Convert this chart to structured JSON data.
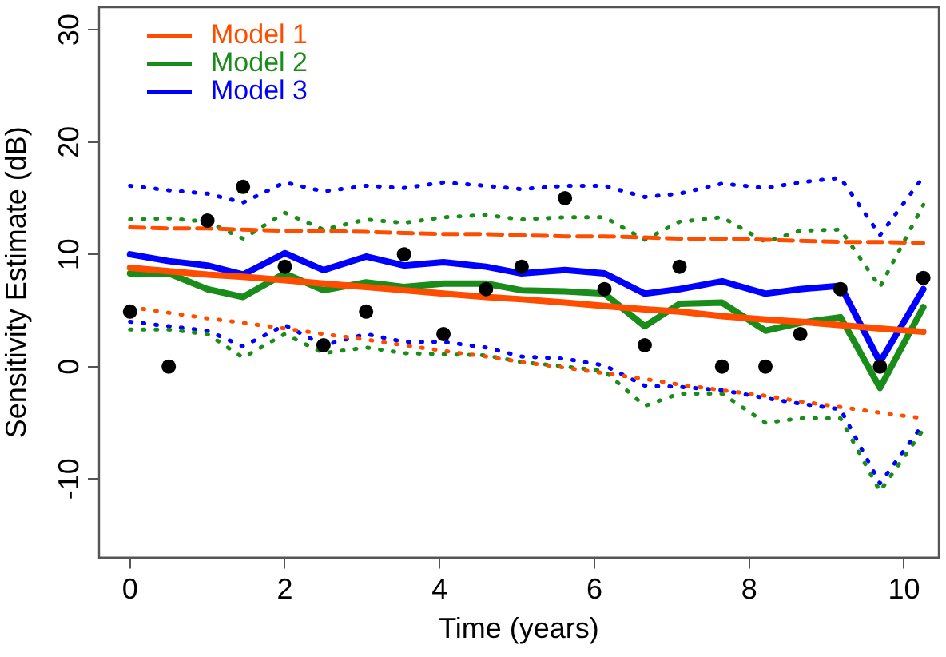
{
  "chart_data": {
    "type": "line",
    "xlabel": "Time (years)",
    "ylabel": "Sensitivity Estimate (dB)",
    "x": [
      0,
      0.5,
      1,
      1.46,
      2,
      2.5,
      3.05,
      3.54,
      4.05,
      4.6,
      5.06,
      5.62,
      6.13,
      6.65,
      7.1,
      7.65,
      8.21,
      8.66,
      9.18,
      9.69,
      10.25
    ],
    "xlim": [
      -0.4,
      10.45
    ],
    "xticks": [
      0,
      2,
      4,
      6,
      8,
      10
    ],
    "ylim": [
      -17,
      32
    ],
    "yticks": [
      -10,
      0,
      10,
      20,
      30
    ],
    "grid": false,
    "legend": "top left",
    "series": [
      {
        "name": "Model 1",
        "color": "#ff4d00",
        "type": "line",
        "line_style": "solid",
        "values": [
          8.8,
          8.5,
          8.2,
          8.0,
          7.7,
          7.4,
          7.1,
          6.8,
          6.5,
          6.2,
          6.0,
          5.7,
          5.4,
          5.1,
          4.9,
          4.5,
          4.2,
          4.0,
          3.7,
          3.4,
          3.1
        ]
      },
      {
        "name": "Model 2",
        "color": "#1a8c1a",
        "type": "line",
        "line_style": "solid",
        "values": [
          8.3,
          8.3,
          6.9,
          6.2,
          8.3,
          6.8,
          7.5,
          7.1,
          7.4,
          7.4,
          6.8,
          6.7,
          6.5,
          3.6,
          5.6,
          5.7,
          3.2,
          3.9,
          4.4,
          -1.9,
          5.3
        ]
      },
      {
        "name": "Model 3",
        "color": "#0000ff",
        "type": "line",
        "line_style": "solid",
        "values": [
          10.0,
          9.4,
          9.0,
          8.2,
          10.1,
          8.6,
          9.8,
          9.0,
          9.3,
          8.9,
          8.3,
          8.6,
          8.3,
          6.5,
          6.9,
          7.6,
          6.5,
          6.9,
          7.2,
          0.4,
          6.9
        ]
      },
      {
        "color": "#ff4d00",
        "type": "line",
        "line_style": "dashed",
        "values": [
          12.4,
          12.3,
          12.3,
          12.2,
          12.1,
          12.1,
          12.0,
          11.9,
          11.8,
          11.8,
          11.7,
          11.6,
          11.6,
          11.5,
          11.4,
          11.4,
          11.3,
          11.2,
          11.1,
          11.1,
          11.0
        ]
      },
      {
        "color": "#ff4d00",
        "type": "line",
        "line_style": "dotted",
        "values": [
          5.3,
          4.8,
          4.3,
          3.9,
          3.4,
          2.9,
          2.4,
          1.9,
          1.4,
          0.9,
          0.4,
          -0.1,
          -0.6,
          -1.1,
          -1.6,
          -2.1,
          -2.6,
          -3.1,
          -3.6,
          -4.1,
          -4.6
        ]
      },
      {
        "color": "#1a8c1a",
        "type": "line",
        "line_style": "dotted",
        "values": [
          13.1,
          13.2,
          12.9,
          11.4,
          13.7,
          12.2,
          13.1,
          12.8,
          13.3,
          13.5,
          13.1,
          13.3,
          13.3,
          11.3,
          12.9,
          13.3,
          11.1,
          12.1,
          12.2,
          7.1,
          14.4
        ]
      },
      {
        "color": "#1a8c1a",
        "type": "line",
        "line_style": "dotted",
        "values": [
          3.3,
          3.3,
          2.9,
          0.8,
          2.9,
          1.2,
          1.7,
          1.2,
          1.1,
          1.0,
          0.4,
          0,
          -0.4,
          -3.5,
          -2.4,
          -2.4,
          -5.0,
          -4.6,
          -4.6,
          -11.1,
          -5.6
        ]
      },
      {
        "color": "#0000ff",
        "type": "line",
        "line_style": "dotted",
        "values": [
          16.1,
          15.7,
          15.4,
          14.6,
          16.4,
          15.6,
          16.1,
          15.9,
          16.4,
          16.1,
          15.8,
          16.1,
          16.1,
          15.1,
          15.4,
          16.3,
          15.9,
          16.4,
          16.8,
          11.7,
          16.9
        ]
      },
      {
        "color": "#0000ff",
        "type": "line",
        "line_style": "dotted",
        "values": [
          4.0,
          3.6,
          3.2,
          1.8,
          3.7,
          1.9,
          2.9,
          2.2,
          2.2,
          1.7,
          0.9,
          0.7,
          0.1,
          -1.7,
          -1.8,
          -2.1,
          -2.8,
          -3.3,
          -3.8,
          -10.4,
          -5.1
        ]
      },
      {
        "color": "#000000",
        "type": "scatter",
        "marker": "circle",
        "values": [
          4.9,
          0,
          13,
          16,
          8.9,
          1.9,
          4.9,
          10,
          2.9,
          6.9,
          8.9,
          15,
          6.9,
          1.9,
          8.9,
          0,
          0,
          2.9,
          6.9,
          0,
          7.9
        ]
      }
    ]
  }
}
